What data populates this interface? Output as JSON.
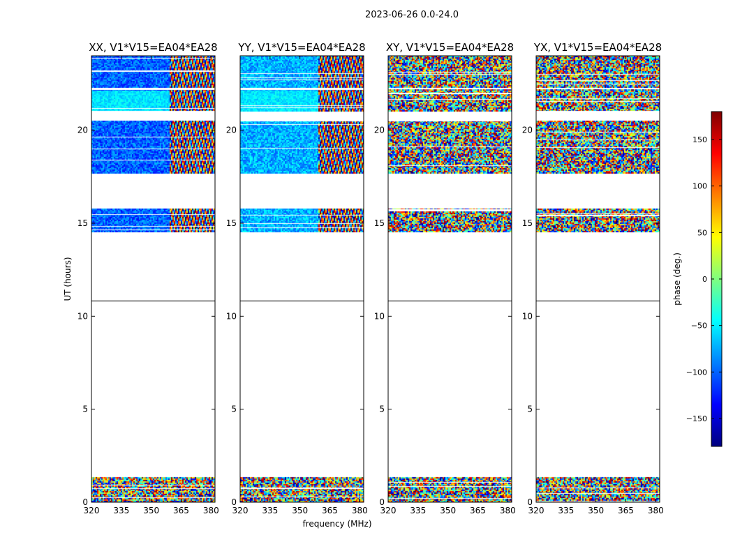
{
  "suptitle": "2023-06-26 0.0-24.0",
  "chart_data": {
    "type": "heatmap",
    "title": "2023-06-26 0.0-24.0",
    "xlabel": "frequency (MHz)",
    "ylabel": "UT (hours)",
    "xlim": [
      320,
      382
    ],
    "ylim": [
      0,
      24
    ],
    "xticks": [
      320,
      335,
      350,
      365,
      380
    ],
    "yticks": [
      0,
      5,
      10,
      15,
      20
    ],
    "colorbar": {
      "label": "phase (deg.)",
      "range": [
        -180,
        180
      ],
      "ticks": [
        150,
        100,
        50,
        0,
        -50,
        -100,
        -150
      ],
      "tick_labels": [
        "150",
        "100",
        "50",
        "0",
        "−50",
        "−100",
        "−150"
      ],
      "colormap": "jet",
      "colors": [
        "#00007f",
        "#0000ff",
        "#007fff",
        "#00ffff",
        "#7fff7f",
        "#ffff00",
        "#ff7f00",
        "#ff0000",
        "#7f0000"
      ]
    },
    "panels": [
      {
        "name": "XX",
        "title": "XX, V1*V15=EA04*EA28",
        "style": "xx"
      },
      {
        "name": "YY",
        "title": "YY, V1*V15=EA04*EA28",
        "style": "yy"
      },
      {
        "name": "XY",
        "title": "XY, V1*V15=EA04*EA28",
        "style": "noise"
      },
      {
        "name": "YX",
        "title": "YX, V1*V15=EA04*EA28",
        "style": "noise"
      }
    ],
    "data_ut_ranges": [
      [
        0.0,
        1.35
      ],
      [
        14.5,
        15.8
      ],
      [
        17.7,
        20.5
      ],
      [
        21.0,
        22.2
      ],
      [
        22.3,
        24.0
      ]
    ],
    "flagged_line_ut": 10.85
  }
}
